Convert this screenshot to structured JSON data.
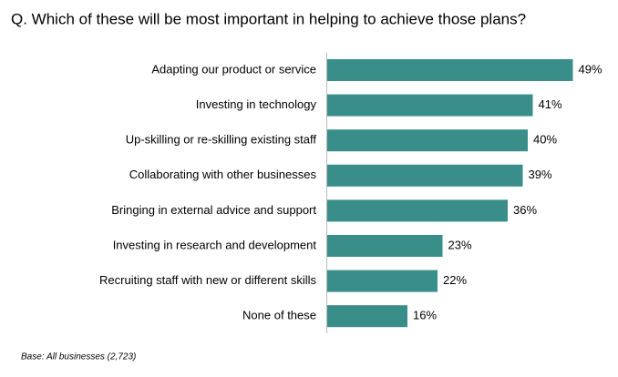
{
  "chart_data": {
    "type": "bar",
    "orientation": "horizontal",
    "title": "Q. Which of these will be most important in helping to achieve those plans?",
    "categories": [
      "Adapting our product or service",
      "Investing in technology",
      "Up-skilling or re-skilling existing staff",
      "Collaborating with other businesses",
      "Bringing in external advice and support",
      "Investing in research and development",
      "Recruiting staff with new or different skills",
      "None of these"
    ],
    "values": [
      49,
      41,
      40,
      39,
      36,
      23,
      22,
      16
    ],
    "value_labels": [
      "49%",
      "41%",
      "40%",
      "39%",
      "36%",
      "23%",
      "22%",
      "16%"
    ],
    "color": "#3a8e8a",
    "footnote": "Base: All businesses (2,723)"
  }
}
